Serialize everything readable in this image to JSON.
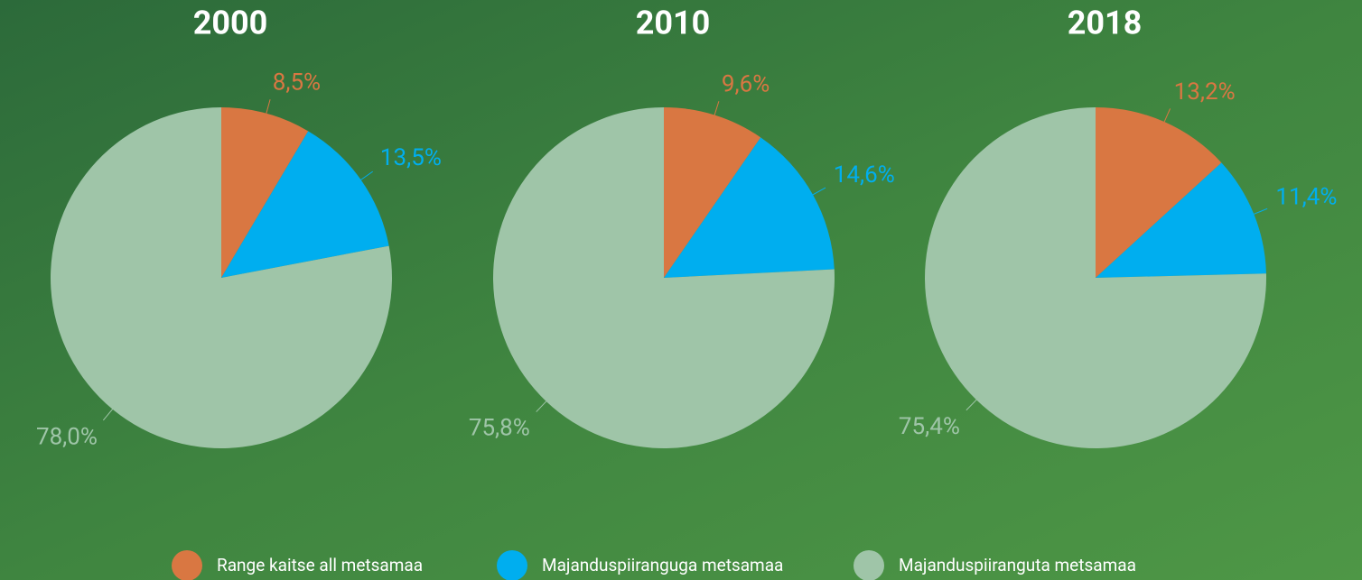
{
  "chart_data": [
    {
      "type": "pie",
      "title": "2000",
      "values": [
        8.5,
        13.5,
        78.0
      ],
      "value_labels": [
        "8,5%",
        "13,5%",
        "78,0%"
      ]
    },
    {
      "type": "pie",
      "title": "2010",
      "values": [
        9.6,
        14.6,
        75.8
      ],
      "value_labels": [
        "9,6%",
        "14,6%",
        "75,8%"
      ]
    },
    {
      "type": "pie",
      "title": "2018",
      "values": [
        13.2,
        11.4,
        75.4
      ],
      "value_labels": [
        "13,2%",
        "11,4%",
        "75,4%"
      ]
    }
  ],
  "legend": {
    "names": [
      "Range kaitse all metsamaa",
      "Majanduspiiranguga metsamaa",
      "Majanduspiiranguta metsamaa"
    ],
    "colors": [
      "#d97742",
      "#00aeef",
      "#9fc5a8"
    ]
  }
}
